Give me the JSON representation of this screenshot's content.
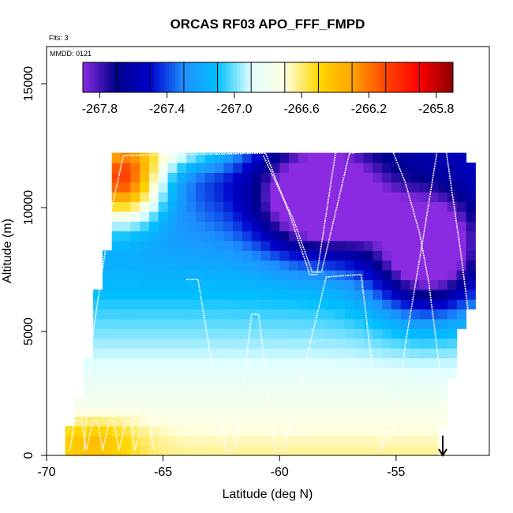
{
  "chart_data": {
    "type": "heatmap",
    "title": "ORCAS RF03 APO_FFF_FMPD",
    "xlabel": "Latitude (deg N)",
    "ylabel": "Altitude (m)",
    "xlim": [
      -70,
      -51
    ],
    "ylim": [
      0,
      16500
    ],
    "x_ticks": [
      -70,
      -65,
      -60,
      -55
    ],
    "x_tick_labels": [
      "-70",
      "-65",
      "-60",
      "-55"
    ],
    "y_ticks": [
      0,
      5000,
      10000,
      15000
    ],
    "y_tick_labels": [
      "0",
      "5000",
      "10000",
      "15000"
    ],
    "annotations": {
      "flights": "Flts: 3",
      "mmdd": "MMDD: 0121"
    },
    "colorbar": {
      "min": -267.9,
      "max": -265.7,
      "ticks": [
        -267.8,
        -267.4,
        -267.0,
        -266.6,
        -266.2,
        -265.8
      ],
      "tick_labels": [
        "-267.8",
        "-267.4",
        "-267.0",
        "-266.6",
        "-266.2",
        "-265.8"
      ],
      "colors": [
        "#8a2be2",
        "#00008b",
        "#0000cd",
        "#1e90ff",
        "#00bfff",
        "#e0ffff",
        "#ffffe0",
        "#ffd700",
        "#ffa500",
        "#ff4500",
        "#ff0000",
        "#8b0000"
      ]
    },
    "field": {
      "x_range": [
        -69.2,
        -51.6
      ],
      "y_range": [
        0,
        13000
      ],
      "nx": 44,
      "ny": 33,
      "coverage_bottom": [
        [
          -69.2,
          0
        ],
        [
          -68.8,
          2000
        ],
        [
          -68.4,
          2800
        ],
        [
          -67.8,
          6500
        ],
        [
          -67.2,
          9000
        ],
        [
          -67.0,
          12200
        ],
        [
          -66.4,
          12300
        ],
        [
          -52.0,
          13000
        ],
        [
          -51.7,
          11000
        ],
        [
          -51.6,
          8000
        ],
        [
          -51.7,
          6000
        ],
        [
          -52.2,
          5000
        ],
        [
          -52.4,
          4000
        ],
        [
          -52.7,
          2500
        ],
        [
          -53.0,
          1200
        ],
        [
          -53.2,
          0
        ]
      ]
    },
    "flight_track": {
      "color": "#ffffff",
      "points": [
        [
          -69.0,
          200
        ],
        [
          -68.8,
          1400
        ],
        [
          -68.5,
          1400
        ],
        [
          -68.3,
          200
        ],
        [
          -68.0,
          1400
        ],
        [
          -67.8,
          1400
        ],
        [
          -67.6,
          200
        ],
        [
          -67.3,
          1400
        ],
        [
          -67.1,
          1400
        ],
        [
          -66.9,
          200
        ],
        [
          -66.6,
          1400
        ],
        [
          -66.4,
          1400
        ],
        [
          -66.2,
          200
        ],
        [
          -65.9,
          1400
        ],
        [
          -65.6,
          1400
        ],
        [
          -65.4,
          200
        ],
        [
          -64.0,
          7100
        ],
        [
          -63.5,
          7100
        ],
        [
          -62.3,
          200
        ],
        [
          -61.9,
          200
        ],
        [
          -61.2,
          5700
        ],
        [
          -60.9,
          5700
        ],
        [
          -60.2,
          200
        ],
        [
          -59.8,
          200
        ],
        [
          -58.0,
          7200
        ],
        [
          -56.5,
          7300
        ],
        [
          -55.6,
          200
        ],
        [
          -55.4,
          1000
        ],
        [
          -55.1,
          1000
        ],
        [
          -54.6,
          4500
        ],
        [
          -53.8,
          9000
        ],
        [
          -53.2,
          12500
        ],
        [
          -52.9,
          12600
        ],
        [
          -52.2,
          8000
        ],
        [
          -51.8,
          5000
        ],
        [
          -52.0,
          4500
        ],
        [
          -52.4,
          2500
        ],
        [
          -52.6,
          1000
        ],
        [
          -60.7,
          12100
        ],
        [
          -59.4,
          9500
        ],
        [
          -58.6,
          7400
        ],
        [
          -58.2,
          7400
        ],
        [
          -57.0,
          12200
        ],
        [
          -55.8,
          12300
        ],
        [
          -55.2,
          12400
        ],
        [
          -54.6,
          11000
        ],
        [
          -54.0,
          9000
        ],
        [
          -53.6,
          7000
        ],
        [
          -53.2,
          4000
        ],
        [
          -53.0,
          2000
        ],
        [
          -53.0,
          500
        ],
        [
          -68.4,
          200
        ],
        [
          -68.0,
          5000
        ],
        [
          -67.2,
          10000
        ],
        [
          -66.7,
          12100
        ],
        [
          -60.6,
          12200
        ],
        [
          -59.6,
          9800
        ],
        [
          -58.7,
          7300
        ],
        [
          -58.4,
          7300
        ],
        [
          -57.6,
          12200
        ],
        [
          -57.2,
          12400
        ],
        [
          -55.6,
          12500
        ],
        [
          -55.2,
          12600
        ],
        [
          -53.0,
          12600
        ]
      ]
    },
    "marker": {
      "type": "arrow",
      "x": -53.0,
      "y_from": 800,
      "y_to": 0
    }
  }
}
